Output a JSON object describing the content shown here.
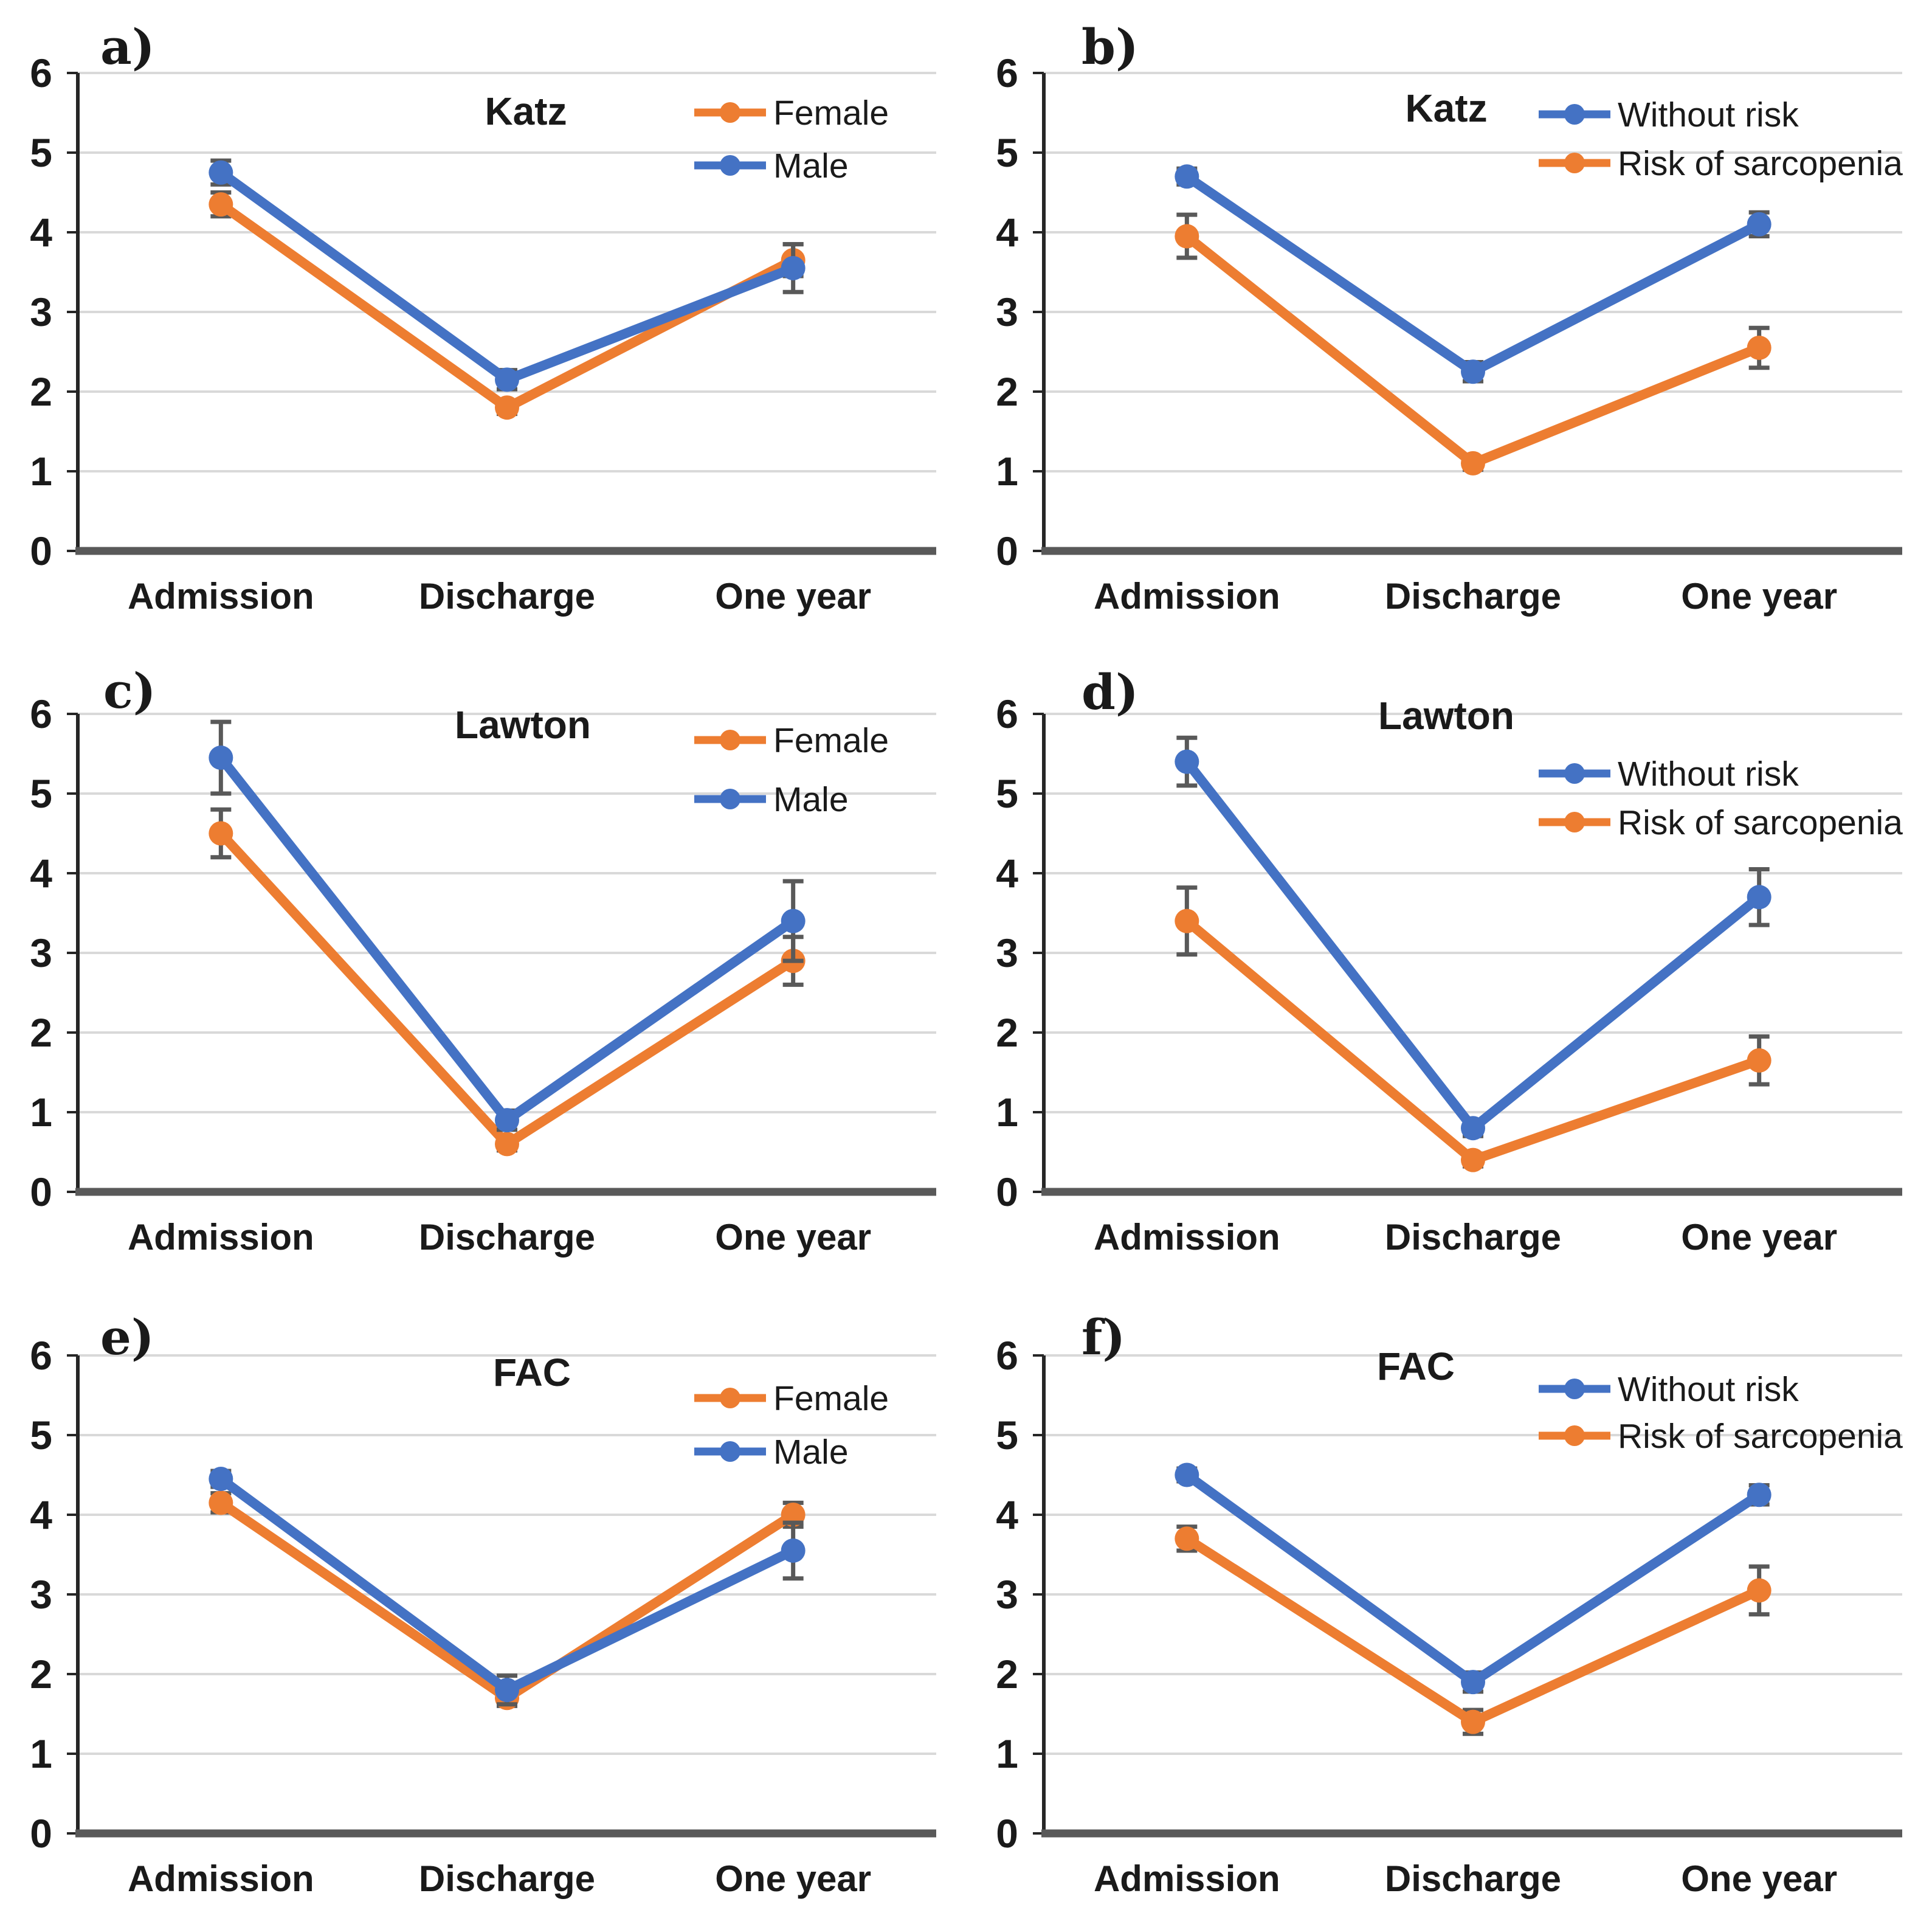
{
  "figure": {
    "background": "#ffffff",
    "categories": [
      "Admission",
      "Discharge",
      "One year"
    ],
    "y_ticks": [
      0,
      1,
      2,
      3,
      4,
      5,
      6
    ]
  },
  "colors": {
    "blue": "#4472C4",
    "orange": "#ED7D31",
    "gridline": "#D9D9D9",
    "axis_y": "#262626",
    "axis_x": "#595959",
    "error_bar": "#595959",
    "text": "#1a1a1a"
  },
  "chart_data": [
    {
      "id": "a",
      "letter": "a)",
      "type": "line",
      "title": "Katz",
      "categories": [
        "Admission",
        "Discharge",
        "One year"
      ],
      "ylim": [
        0,
        6
      ],
      "yticks": [
        0,
        1,
        2,
        3,
        4,
        5,
        6
      ],
      "grid": true,
      "legend_position": "top-right",
      "legend_kind": "gender",
      "series": [
        {
          "name": "Female",
          "color": "orange",
          "values": [
            4.35,
            1.8,
            3.65
          ],
          "errors": [
            0.15,
            0.08,
            0.2
          ]
        },
        {
          "name": "Male",
          "color": "blue",
          "values": [
            4.75,
            2.15,
            3.55
          ],
          "errors": [
            0.15,
            0.12,
            0.3
          ]
        }
      ]
    },
    {
      "id": "b",
      "letter": "b)",
      "type": "line",
      "title": "Katz",
      "categories": [
        "Admission",
        "Discharge",
        "One year"
      ],
      "ylim": [
        0,
        6
      ],
      "yticks": [
        0,
        1,
        2,
        3,
        4,
        5,
        6
      ],
      "grid": true,
      "legend_position": "top-right",
      "legend_kind": "risk",
      "series": [
        {
          "name": "Without risk",
          "color": "blue",
          "values": [
            4.7,
            2.25,
            4.1
          ],
          "errors": [
            0.1,
            0.12,
            0.15
          ]
        },
        {
          "name": "Risk of sarcopenia",
          "color": "orange",
          "values": [
            3.95,
            1.1,
            2.55
          ],
          "errors": [
            0.27,
            0.08,
            0.25
          ]
        }
      ]
    },
    {
      "id": "c",
      "letter": "c)",
      "type": "line",
      "title": "Lawton",
      "categories": [
        "Admission",
        "Discharge",
        "One year"
      ],
      "ylim": [
        0,
        6
      ],
      "yticks": [
        0,
        1,
        2,
        3,
        4,
        5,
        6
      ],
      "grid": true,
      "legend_position": "top-right",
      "legend_kind": "gender",
      "series": [
        {
          "name": "Female",
          "color": "orange",
          "values": [
            4.5,
            0.6,
            2.9
          ],
          "errors": [
            0.3,
            0.08,
            0.3
          ]
        },
        {
          "name": "Male",
          "color": "blue",
          "values": [
            5.45,
            0.9,
            3.4
          ],
          "errors": [
            0.45,
            0.12,
            0.5
          ]
        }
      ]
    },
    {
      "id": "d",
      "letter": "d)",
      "type": "line",
      "title": "Lawton",
      "categories": [
        "Admission",
        "Discharge",
        "One year"
      ],
      "ylim": [
        0,
        6
      ],
      "yticks": [
        0,
        1,
        2,
        3,
        4,
        5,
        6
      ],
      "grid": true,
      "legend_position": "right",
      "legend_kind": "risk",
      "series": [
        {
          "name": "Without risk",
          "color": "blue",
          "values": [
            5.4,
            0.8,
            3.7
          ],
          "errors": [
            0.3,
            0.1,
            0.35
          ]
        },
        {
          "name": "Risk of sarcopenia",
          "color": "orange",
          "values": [
            3.4,
            0.4,
            1.65
          ],
          "errors": [
            0.42,
            0.08,
            0.3
          ]
        }
      ]
    },
    {
      "id": "e",
      "letter": "e)",
      "type": "line",
      "title": "FAC",
      "categories": [
        "Admission",
        "Discharge",
        "One year"
      ],
      "ylim": [
        0,
        6
      ],
      "yticks": [
        0,
        1,
        2,
        3,
        4,
        5,
        6
      ],
      "grid": true,
      "legend_position": "top-right",
      "legend_kind": "gender",
      "series": [
        {
          "name": "Female",
          "color": "orange",
          "values": [
            4.15,
            1.7,
            4.0
          ],
          "errors": [
            0.12,
            0.1,
            0.15
          ]
        },
        {
          "name": "Male",
          "color": "blue",
          "values": [
            4.45,
            1.8,
            3.55
          ],
          "errors": [
            0.1,
            0.18,
            0.35
          ]
        }
      ]
    },
    {
      "id": "f",
      "letter": "f)",
      "type": "line",
      "title": "FAC",
      "categories": [
        "Admission",
        "Discharge",
        "One year"
      ],
      "ylim": [
        0,
        6
      ],
      "yticks": [
        0,
        1,
        2,
        3,
        4,
        5,
        6
      ],
      "grid": true,
      "legend_position": "top-right",
      "legend_kind": "risk",
      "series": [
        {
          "name": "Without risk",
          "color": "blue",
          "values": [
            4.5,
            1.9,
            4.25
          ],
          "errors": [
            0.08,
            0.12,
            0.12
          ]
        },
        {
          "name": "Risk of sarcopenia",
          "color": "orange",
          "values": [
            3.7,
            1.4,
            3.05
          ],
          "errors": [
            0.15,
            0.15,
            0.3
          ]
        }
      ]
    }
  ]
}
